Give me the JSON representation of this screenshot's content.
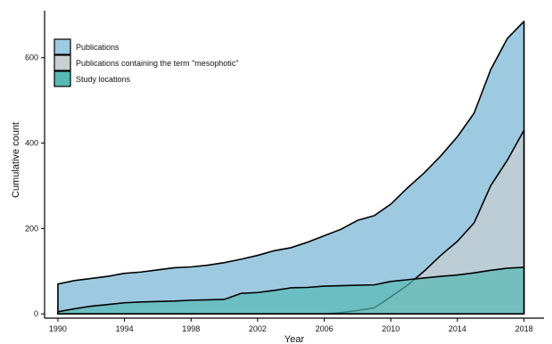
{
  "chart_data": {
    "type": "area",
    "xlabel": "Year",
    "ylabel": "Cumulative count",
    "xlim": [
      1989.2,
      2019.2
    ],
    "ylim": [
      -10,
      710
    ],
    "xticks": [
      1990,
      1994,
      1998,
      2002,
      2006,
      2010,
      2014,
      2018
    ],
    "yticks": [
      0,
      200,
      400,
      600
    ],
    "legend_position": "top-left",
    "grid": false,
    "x": [
      1990,
      1991,
      1992,
      1993,
      1994,
      1995,
      1996,
      1997,
      1998,
      1999,
      2000,
      2001,
      2002,
      2003,
      2004,
      2005,
      2006,
      2007,
      2008,
      2009,
      2010,
      2011,
      2012,
      2013,
      2014,
      2015,
      2016,
      2017,
      2018
    ],
    "series": [
      {
        "name": "Publications",
        "color": "#9ecae1",
        "values": [
          70,
          78,
          83,
          88,
          95,
          98,
          103,
          108,
          110,
          114,
          120,
          128,
          137,
          148,
          155,
          168,
          183,
          198,
          219,
          230,
          257,
          295,
          330,
          370,
          415,
          470,
          572,
          645,
          685
        ]
      },
      {
        "name": "Publications containing the term \"mesophotic\"",
        "color": "#c9cfd2",
        "values": [
          0,
          0,
          0,
          0,
          0,
          0,
          0,
          0,
          0,
          0,
          0,
          0,
          0,
          0,
          0,
          0,
          0,
          3,
          8,
          14,
          40,
          67,
          100,
          137,
          170,
          213,
          300,
          360,
          430
        ]
      },
      {
        "name": "Study locations",
        "color": "#56b9b3",
        "values": [
          5,
          12,
          18,
          22,
          26,
          28,
          29,
          30,
          32,
          33,
          34,
          48,
          50,
          55,
          61,
          62,
          65,
          66,
          67,
          68,
          76,
          80,
          84,
          88,
          91,
          96,
          102,
          107,
          109
        ]
      }
    ]
  }
}
